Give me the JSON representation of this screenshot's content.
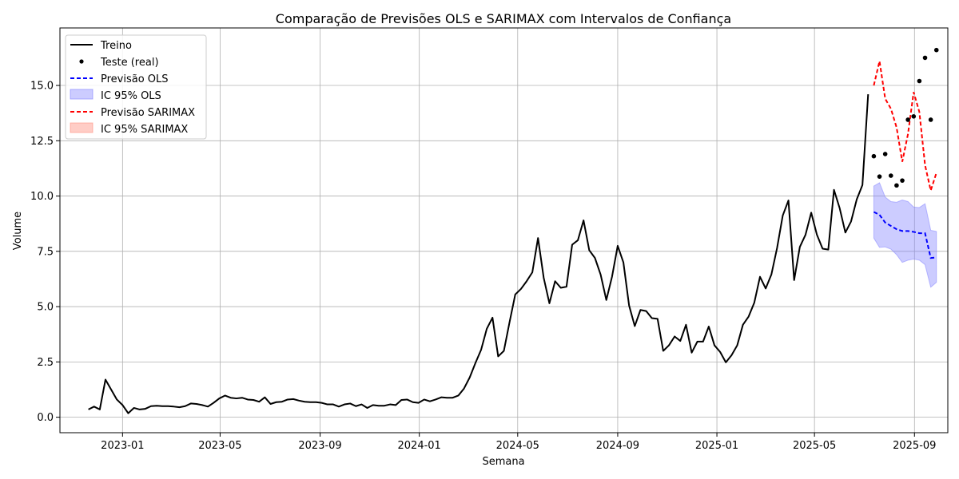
{
  "chart_data": {
    "type": "line",
    "title": "Comparação de Previsões OLS e SARIMAX com Intervalos de Confiança",
    "xlabel": "Semana",
    "ylabel": "Volume",
    "x_ticks": [
      "2023-01",
      "2023-05",
      "2023-09",
      "2024-01",
      "2024-05",
      "2024-09",
      "2025-01",
      "2025-05",
      "2025-09"
    ],
    "y_ticks": [
      "0.0",
      "2.5",
      "5.0",
      "7.5",
      "10.0",
      "12.5",
      "15.0"
    ],
    "xlim": [
      "2022-10-16",
      "2025-10-12"
    ],
    "ylim": [
      -0.7,
      17.6
    ],
    "grid": true,
    "legend_position": "top-left",
    "colors": {
      "treino": "#000000",
      "teste": "#000000",
      "ols": "#0000ff",
      "ols_ci": "#8080ff",
      "sarimax": "#ff0000",
      "sarimax_ci": "#ff9080"
    },
    "legend": [
      "Treino",
      "Teste (real)",
      "Previsão OLS",
      "IC 95% OLS",
      "Previsão SARIMAX",
      "IC 95% SARIMAX"
    ],
    "series": [
      {
        "name": "Treino",
        "style": "line",
        "points": [
          [
            "2022-11-20",
            0.35
          ],
          [
            "2022-11-27",
            0.48
          ],
          [
            "2022-12-04",
            0.35
          ],
          [
            "2022-12-11",
            1.7
          ],
          [
            "2022-12-18",
            1.25
          ],
          [
            "2022-12-25",
            0.8
          ],
          [
            "2023-01-01",
            0.55
          ],
          [
            "2023-01-08",
            0.18
          ],
          [
            "2023-01-15",
            0.42
          ],
          [
            "2023-01-22",
            0.35
          ],
          [
            "2023-01-29",
            0.38
          ],
          [
            "2023-02-05",
            0.5
          ],
          [
            "2023-02-12",
            0.52
          ],
          [
            "2023-02-19",
            0.5
          ],
          [
            "2023-02-26",
            0.5
          ],
          [
            "2023-03-05",
            0.48
          ],
          [
            "2023-03-12",
            0.45
          ],
          [
            "2023-03-19",
            0.5
          ],
          [
            "2023-03-26",
            0.62
          ],
          [
            "2023-04-02",
            0.6
          ],
          [
            "2023-04-09",
            0.55
          ],
          [
            "2023-04-16",
            0.48
          ],
          [
            "2023-04-23",
            0.65
          ],
          [
            "2023-04-30",
            0.85
          ],
          [
            "2023-05-07",
            0.98
          ],
          [
            "2023-05-14",
            0.88
          ],
          [
            "2023-05-21",
            0.85
          ],
          [
            "2023-05-28",
            0.88
          ],
          [
            "2023-06-04",
            0.8
          ],
          [
            "2023-06-11",
            0.78
          ],
          [
            "2023-06-18",
            0.7
          ],
          [
            "2023-06-25",
            0.9
          ],
          [
            "2023-07-02",
            0.6
          ],
          [
            "2023-07-09",
            0.68
          ],
          [
            "2023-07-16",
            0.7
          ],
          [
            "2023-07-23",
            0.8
          ],
          [
            "2023-07-30",
            0.82
          ],
          [
            "2023-08-06",
            0.75
          ],
          [
            "2023-08-13",
            0.7
          ],
          [
            "2023-08-20",
            0.68
          ],
          [
            "2023-08-27",
            0.68
          ],
          [
            "2023-09-03",
            0.65
          ],
          [
            "2023-09-10",
            0.58
          ],
          [
            "2023-09-17",
            0.58
          ],
          [
            "2023-09-24",
            0.48
          ],
          [
            "2023-10-01",
            0.58
          ],
          [
            "2023-10-08",
            0.62
          ],
          [
            "2023-10-15",
            0.5
          ],
          [
            "2023-10-22",
            0.58
          ],
          [
            "2023-10-29",
            0.42
          ],
          [
            "2023-11-05",
            0.55
          ],
          [
            "2023-11-12",
            0.52
          ],
          [
            "2023-11-19",
            0.52
          ],
          [
            "2023-11-26",
            0.58
          ],
          [
            "2023-12-03",
            0.55
          ],
          [
            "2023-12-10",
            0.78
          ],
          [
            "2023-12-17",
            0.8
          ],
          [
            "2023-12-24",
            0.68
          ],
          [
            "2023-12-31",
            0.65
          ],
          [
            "2024-01-07",
            0.8
          ],
          [
            "2024-01-14",
            0.72
          ],
          [
            "2024-01-21",
            0.8
          ],
          [
            "2024-01-28",
            0.9
          ],
          [
            "2024-02-04",
            0.88
          ],
          [
            "2024-02-11",
            0.88
          ],
          [
            "2024-02-18",
            0.98
          ],
          [
            "2024-02-25",
            1.3
          ],
          [
            "2024-03-03",
            1.8
          ],
          [
            "2024-03-10",
            2.45
          ],
          [
            "2024-03-17",
            3.05
          ],
          [
            "2024-03-24",
            4.0
          ],
          [
            "2024-03-31",
            4.5
          ],
          [
            "2024-04-07",
            2.75
          ],
          [
            "2024-04-14",
            3.0
          ],
          [
            "2024-04-21",
            4.3
          ],
          [
            "2024-04-28",
            5.55
          ],
          [
            "2024-05-05",
            5.8
          ],
          [
            "2024-05-12",
            6.15
          ],
          [
            "2024-05-19",
            6.55
          ],
          [
            "2024-05-26",
            8.1
          ],
          [
            "2024-06-02",
            6.3
          ],
          [
            "2024-06-09",
            5.15
          ],
          [
            "2024-06-16",
            6.15
          ],
          [
            "2024-06-23",
            5.85
          ],
          [
            "2024-06-30",
            5.9
          ],
          [
            "2024-07-07",
            7.8
          ],
          [
            "2024-07-14",
            8.0
          ],
          [
            "2024-07-21",
            8.9
          ],
          [
            "2024-07-28",
            7.55
          ],
          [
            "2024-08-04",
            7.2
          ],
          [
            "2024-08-11",
            6.45
          ],
          [
            "2024-08-18",
            5.3
          ],
          [
            "2024-08-25",
            6.35
          ],
          [
            "2024-09-01",
            7.75
          ],
          [
            "2024-09-08",
            7.0
          ],
          [
            "2024-09-15",
            5.05
          ],
          [
            "2024-09-22",
            4.12
          ],
          [
            "2024-09-29",
            4.85
          ],
          [
            "2024-10-06",
            4.8
          ],
          [
            "2024-10-13",
            4.48
          ],
          [
            "2024-10-20",
            4.45
          ],
          [
            "2024-10-27",
            3.0
          ],
          [
            "2024-11-03",
            3.25
          ],
          [
            "2024-11-10",
            3.65
          ],
          [
            "2024-11-17",
            3.45
          ],
          [
            "2024-11-24",
            4.18
          ],
          [
            "2024-12-01",
            2.92
          ],
          [
            "2024-12-08",
            3.42
          ],
          [
            "2024-12-15",
            3.42
          ],
          [
            "2024-12-22",
            4.1
          ],
          [
            "2024-12-29",
            3.25
          ],
          [
            "2025-01-05",
            2.95
          ],
          [
            "2025-01-12",
            2.48
          ],
          [
            "2025-01-19",
            2.8
          ],
          [
            "2025-01-26",
            3.25
          ],
          [
            "2025-02-02",
            4.18
          ],
          [
            "2025-02-09",
            4.55
          ],
          [
            "2025-02-16",
            5.18
          ],
          [
            "2025-02-23",
            6.35
          ],
          [
            "2025-03-02",
            5.82
          ],
          [
            "2025-03-09",
            6.45
          ],
          [
            "2025-03-16",
            7.65
          ],
          [
            "2025-03-23",
            9.12
          ],
          [
            "2025-03-30",
            9.8
          ],
          [
            "2025-04-06",
            6.2
          ],
          [
            "2025-04-13",
            7.7
          ],
          [
            "2025-04-20",
            8.25
          ],
          [
            "2025-04-27",
            9.25
          ],
          [
            "2025-05-04",
            8.25
          ],
          [
            "2025-05-11",
            7.62
          ],
          [
            "2025-05-18",
            7.58
          ],
          [
            "2025-05-25",
            10.28
          ],
          [
            "2025-06-01",
            9.45
          ],
          [
            "2025-06-08",
            8.35
          ],
          [
            "2025-06-15",
            8.85
          ],
          [
            "2025-06-22",
            9.85
          ],
          [
            "2025-06-29",
            10.5
          ],
          [
            "2025-07-06",
            14.6
          ]
        ]
      },
      {
        "name": "Teste (real)",
        "style": "points",
        "points": [
          [
            "2025-07-13",
            11.8
          ],
          [
            "2025-07-20",
            10.88
          ],
          [
            "2025-07-27",
            11.9
          ],
          [
            "2025-08-03",
            10.92
          ],
          [
            "2025-08-10",
            10.48
          ],
          [
            "2025-08-17",
            10.7
          ],
          [
            "2025-08-24",
            13.45
          ],
          [
            "2025-08-31",
            13.6
          ],
          [
            "2025-09-07",
            15.2
          ],
          [
            "2025-09-14",
            16.25
          ],
          [
            "2025-09-21",
            13.45
          ],
          [
            "2025-09-28",
            16.6
          ]
        ]
      },
      {
        "name": "Previsão OLS",
        "style": "dashed",
        "points": [
          [
            "2025-07-13",
            9.28
          ],
          [
            "2025-07-20",
            9.15
          ],
          [
            "2025-07-27",
            8.8
          ],
          [
            "2025-08-03",
            8.65
          ],
          [
            "2025-08-10",
            8.5
          ],
          [
            "2025-08-17",
            8.42
          ],
          [
            "2025-08-24",
            8.42
          ],
          [
            "2025-08-31",
            8.38
          ],
          [
            "2025-09-07",
            8.32
          ],
          [
            "2025-09-14",
            8.32
          ],
          [
            "2025-09-21",
            7.2
          ],
          [
            "2025-09-28",
            7.22
          ]
        ]
      },
      {
        "name": "IC 95% OLS",
        "style": "band",
        "upper": [
          10.45,
          10.6,
          9.95,
          9.75,
          9.72,
          9.82,
          9.75,
          9.5,
          9.48,
          9.65,
          8.45,
          8.4
        ],
        "lower": [
          8.1,
          7.68,
          7.7,
          7.6,
          7.35,
          7.0,
          7.1,
          7.15,
          7.1,
          6.9,
          5.88,
          6.1
        ]
      },
      {
        "name": "Previsão SARIMAX",
        "style": "dashed",
        "points": [
          [
            "2025-07-13",
            15.0
          ],
          [
            "2025-07-20",
            16.1
          ],
          [
            "2025-07-27",
            14.4
          ],
          [
            "2025-08-03",
            13.95
          ],
          [
            "2025-08-10",
            13.1
          ],
          [
            "2025-08-17",
            11.55
          ],
          [
            "2025-08-24",
            12.8
          ],
          [
            "2025-08-31",
            14.7
          ],
          [
            "2025-09-07",
            13.8
          ],
          [
            "2025-09-14",
            11.4
          ],
          [
            "2025-09-21",
            10.25
          ],
          [
            "2025-09-28",
            11.05
          ]
        ]
      },
      {
        "name": "IC 95% SARIMAX",
        "style": "band"
      }
    ]
  }
}
